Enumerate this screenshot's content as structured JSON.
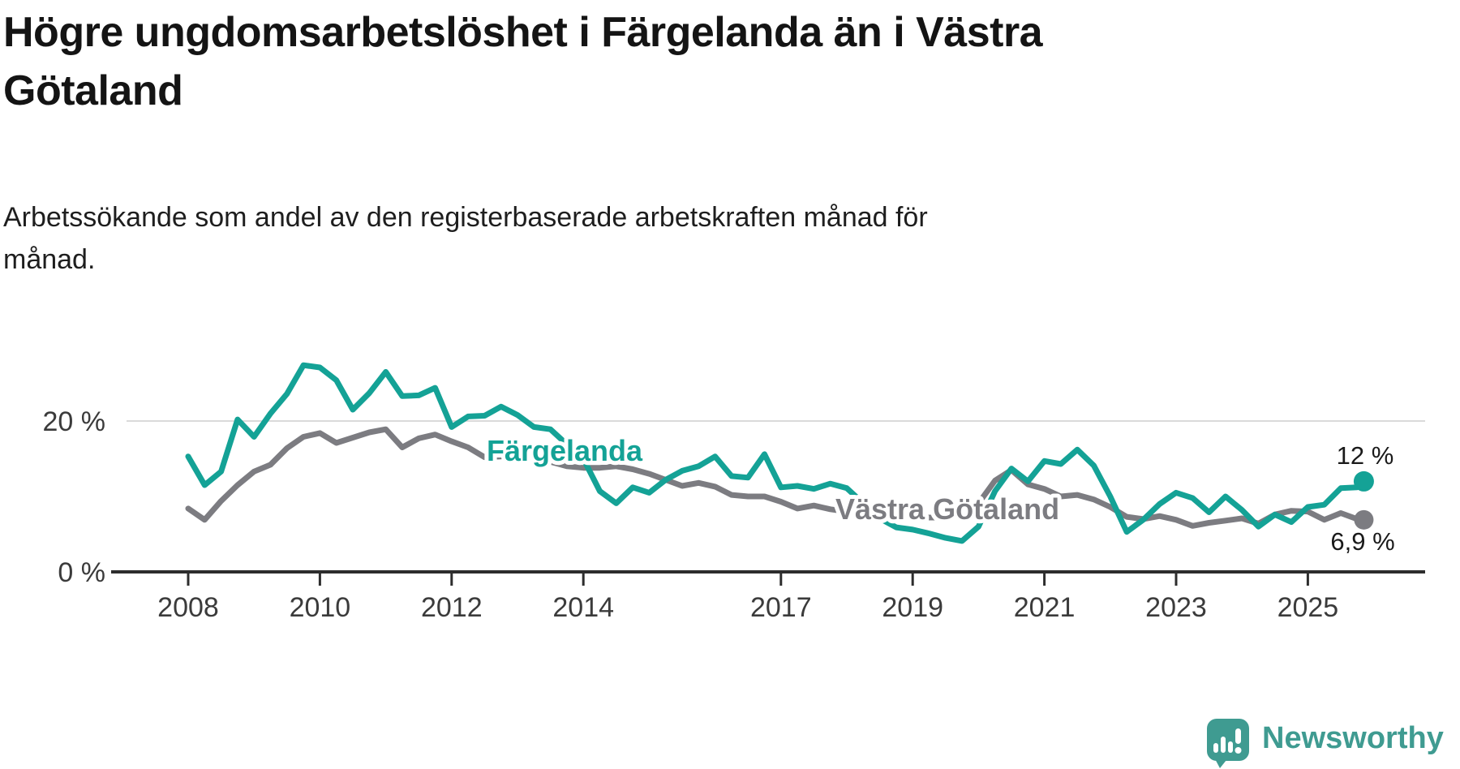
{
  "header": {
    "title": "Högre ungdomsarbetslöshet i Färgelanda än i Västra\nGötaland",
    "subtitle": "Arbetssökande som andel av den registerbaserade arbetskraften månad för\nmånad."
  },
  "chart_data": {
    "type": "line",
    "unit": "%",
    "grid": "y-only",
    "legend_position": "inline-labels",
    "ylim": [
      0,
      30
    ],
    "y_ticks": [
      {
        "value": 20,
        "label": "20 %"
      },
      {
        "value": 0,
        "label": "0 %"
      }
    ],
    "x_ticks": [
      {
        "year": 2008,
        "label": "2008"
      },
      {
        "year": 2010,
        "label": "2010"
      },
      {
        "year": 2012,
        "label": "2012"
      },
      {
        "year": 2014,
        "label": "2014"
      },
      {
        "year": 2017,
        "label": "2017"
      },
      {
        "year": 2019,
        "label": "2019"
      },
      {
        "year": 2021,
        "label": "2021"
      },
      {
        "year": 2023,
        "label": "2023"
      },
      {
        "year": 2025,
        "label": "2025"
      }
    ],
    "x": [
      2008.0,
      2008.25,
      2008.5,
      2008.75,
      2009.0,
      2009.25,
      2009.5,
      2009.75,
      2010.0,
      2010.25,
      2010.5,
      2010.75,
      2011.0,
      2011.25,
      2011.5,
      2011.75,
      2012.0,
      2012.25,
      2012.5,
      2012.75,
      2013.0,
      2013.25,
      2013.5,
      2013.75,
      2014.0,
      2014.25,
      2014.5,
      2014.75,
      2015.0,
      2015.25,
      2015.5,
      2015.75,
      2016.0,
      2016.25,
      2016.5,
      2016.75,
      2017.0,
      2017.25,
      2017.5,
      2017.75,
      2018.0,
      2018.25,
      2018.5,
      2018.75,
      2019.0,
      2019.25,
      2019.5,
      2019.75,
      2020.0,
      2020.25,
      2020.5,
      2020.75,
      2021.0,
      2021.25,
      2021.5,
      2021.75,
      2022.0,
      2022.25,
      2022.5,
      2022.75,
      2023.0,
      2023.25,
      2023.5,
      2023.75,
      2024.0,
      2024.25,
      2024.5,
      2024.75,
      2025.0,
      2025.25,
      2025.5,
      2025.75,
      2025.85
    ],
    "series": [
      {
        "name": "Färgelanda",
        "color": "#14a296",
        "end_label": "12 %",
        "end_value": 12.0,
        "values": [
          15.3,
          11.5,
          13.3,
          20.2,
          17.9,
          21.0,
          23.6,
          27.4,
          27.1,
          25.4,
          21.5,
          23.7,
          26.5,
          23.3,
          23.4,
          24.4,
          19.2,
          20.6,
          20.7,
          21.9,
          20.8,
          19.2,
          18.9,
          16.9,
          15.0,
          10.7,
          9.1,
          11.2,
          10.5,
          12.2,
          13.4,
          14.0,
          15.3,
          12.7,
          12.5,
          15.6,
          11.2,
          11.4,
          11.0,
          11.7,
          11.1,
          9.1,
          7.1,
          5.9,
          5.6,
          5.1,
          4.5,
          4.1,
          6.0,
          10.7,
          13.7,
          12.0,
          14.7,
          14.3,
          16.2,
          14.1,
          10.0,
          5.3,
          6.9,
          9.0,
          10.5,
          9.8,
          7.9,
          10.0,
          8.2,
          6.0,
          7.6,
          6.6,
          8.6,
          8.9,
          11.1,
          11.2,
          12.0
        ]
      },
      {
        "name": "Västra Götaland",
        "color": "#7c7c81",
        "end_label": "6,9 %",
        "end_value": 6.9,
        "values": [
          8.4,
          6.9,
          9.4,
          11.5,
          13.3,
          14.2,
          16.4,
          17.9,
          18.4,
          17.1,
          17.8,
          18.5,
          18.9,
          16.5,
          17.7,
          18.2,
          17.3,
          16.5,
          15.2,
          15.3,
          15.8,
          15.1,
          14.6,
          14.0,
          13.8,
          13.8,
          14.0,
          13.6,
          13.0,
          12.2,
          11.4,
          11.8,
          11.3,
          10.2,
          10.0,
          10.0,
          9.3,
          8.4,
          8.8,
          8.3,
          8.0,
          7.8,
          7.6,
          7.4,
          7.3,
          7.2,
          7.2,
          7.8,
          9.1,
          12.1,
          13.5,
          11.6,
          11.0,
          10.0,
          10.2,
          9.6,
          8.6,
          7.3,
          7.0,
          7.4,
          6.9,
          6.1,
          6.5,
          6.8,
          7.1,
          6.4,
          7.6,
          8.1,
          8.0,
          6.9,
          7.8,
          7.0,
          6.9
        ]
      }
    ]
  },
  "branding": {
    "logo_text": "Newsworthy",
    "logo_color": "#3f9b91",
    "logo_icon": "speech-bubble-bar-chart-icon"
  }
}
